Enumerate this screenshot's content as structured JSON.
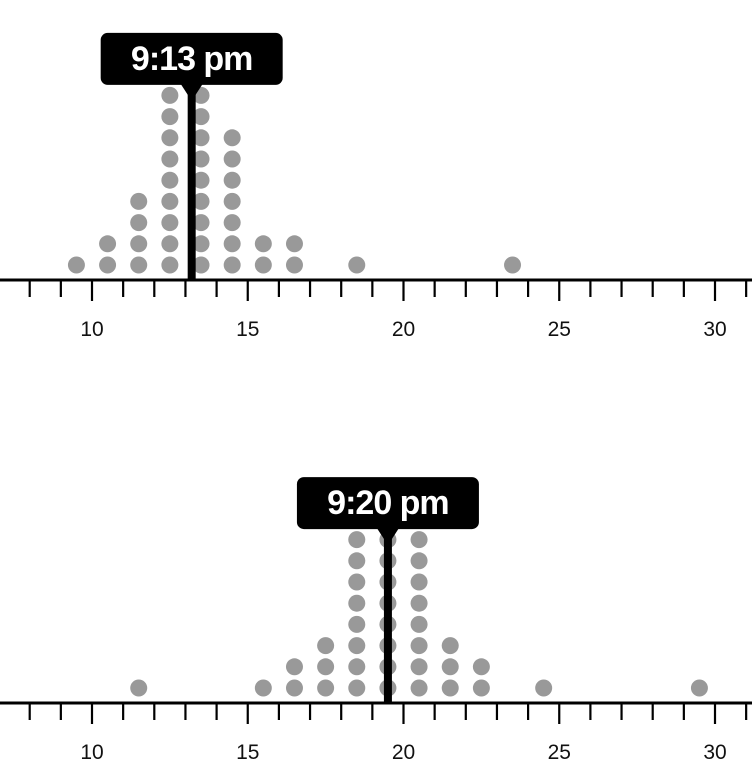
{
  "chart_data": [
    {
      "type": "dot-plot",
      "xlim": [
        7,
        31
      ],
      "x_ticks": [
        10,
        15,
        20,
        25,
        30
      ],
      "minor_tick_step": 1,
      "marker": {
        "value": 13.2,
        "label": "9:13 pm"
      },
      "dot_color": "#999999",
      "marker_color": "#000000",
      "points": [
        {
          "x": 9.5,
          "count": 1
        },
        {
          "x": 10.5,
          "count": 2
        },
        {
          "x": 11.5,
          "count": 4
        },
        {
          "x": 12.5,
          "count": 9
        },
        {
          "x": 13.5,
          "count": 9
        },
        {
          "x": 14.5,
          "count": 7
        },
        {
          "x": 15.5,
          "count": 2
        },
        {
          "x": 16.5,
          "count": 2
        },
        {
          "x": 18.5,
          "count": 1
        },
        {
          "x": 23.5,
          "count": 1
        }
      ]
    },
    {
      "type": "dot-plot",
      "xlim": [
        7,
        31
      ],
      "x_ticks": [
        10,
        15,
        20,
        25,
        30
      ],
      "minor_tick_step": 1,
      "marker": {
        "value": 19.5,
        "label": "9:20 pm"
      },
      "dot_color": "#999999",
      "marker_color": "#000000",
      "points": [
        {
          "x": 11.5,
          "count": 1
        },
        {
          "x": 15.5,
          "count": 1
        },
        {
          "x": 16.5,
          "count": 2
        },
        {
          "x": 17.5,
          "count": 3
        },
        {
          "x": 18.5,
          "count": 8
        },
        {
          "x": 19.5,
          "count": 8
        },
        {
          "x": 20.5,
          "count": 8
        },
        {
          "x": 21.5,
          "count": 3
        },
        {
          "x": 22.5,
          "count": 2
        },
        {
          "x": 24.5,
          "count": 1
        },
        {
          "x": 29.5,
          "count": 1
        }
      ]
    }
  ]
}
